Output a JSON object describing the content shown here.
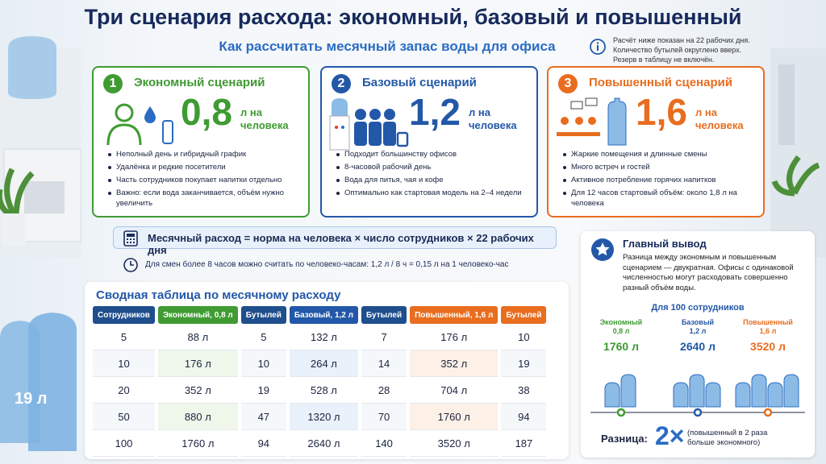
{
  "header": {
    "title": "Три сценария расхода: экономный, базовый и повышенный",
    "subtitle": "Как рассчитать месячный запас воды для офиса",
    "note": [
      "Расчёт ниже показан на 22 рабочих дня.",
      "Количество бутылей округлено вверх.",
      "Резерв в таблицу не включён."
    ]
  },
  "scenarios": [
    {
      "number": "1",
      "title": "Экономный сценарий",
      "value": "0,8",
      "unit": [
        "л на",
        "человека"
      ],
      "color": "#3f9b32",
      "bullets": [
        "Неполный день и гибридный график",
        "Удалёнка и редкие посетители",
        "Часть сотрудников покупает напитки отдельно",
        "Важно: если вода заканчивается, объём нужно увеличить"
      ]
    },
    {
      "number": "2",
      "title": "Базовый сценарий",
      "value": "1,2",
      "unit": [
        "л на",
        "человека"
      ],
      "color": "#2358a8",
      "bullets": [
        "Подходит большинству офисов",
        "8-часовой рабочий день",
        "Вода для питья, чая и кофе",
        "Оптимально как стартовая модель на 2–4 недели"
      ]
    },
    {
      "number": "3",
      "title": "Повышенный сценарий",
      "value": "1,6",
      "unit": [
        "л на",
        "человека"
      ],
      "color": "#e86d1f",
      "bullets": [
        "Жаркие помещения и длинные смены",
        "Много встреч и гостей",
        "Активное потребление горячих напитков",
        "Для 12 часов стартовый объём: около 1,8 л на человека"
      ]
    }
  ],
  "formula": "Месячный расход = норма на человека × число сотрудников × 22 рабочих дня",
  "hours_note": "Для смен более 8 часов можно считать по человеко-часам: 1,2 л / 8 ч = 0,15 л на 1 человеко-час",
  "table": {
    "title": "Сводная таблица по месячному расходу",
    "headers": [
      "Сотрудников",
      "Экономный, 0,8 л",
      "Бутылей",
      "Базовый, 1,2 л",
      "Бутылей",
      "Повышенный, 1,6 л",
      "Бутылей"
    ],
    "rows": [
      [
        "5",
        "88 л",
        "5",
        "132 л",
        "7",
        "176 л",
        "10"
      ],
      [
        "10",
        "176 л",
        "10",
        "264 л",
        "14",
        "352 л",
        "19"
      ],
      [
        "20",
        "352 л",
        "19",
        "528 л",
        "28",
        "704 л",
        "38"
      ],
      [
        "50",
        "880 л",
        "47",
        "1320 л",
        "70",
        "1760 л",
        "94"
      ],
      [
        "100",
        "1760 л",
        "94",
        "2640 л",
        "140",
        "3520 л",
        "187"
      ]
    ]
  },
  "conclusion": {
    "title": "Главный вывод",
    "text": [
      "Разница между экономным и повышенным",
      "сценарием — двукратная. Офисы с одинаковой",
      "численностью могут расходовать совершенно",
      "разный объём воды."
    ],
    "subtitle": "Для 100 сотрудников",
    "items": [
      {
        "label": "Экономный",
        "norm": "0,8 л",
        "total": "1760 л",
        "color": "#3f9b32"
      },
      {
        "label": "Базовый",
        "norm": "1,2 л",
        "total": "2640 л",
        "color": "#2358a8"
      },
      {
        "label": "Повышенный",
        "norm": "1,6 л",
        "total": "3520 л",
        "color": "#e86d1f"
      }
    ],
    "difference_label": "Разница:",
    "difference_value": "2×",
    "difference_note": [
      "(повышенный в 2 раза",
      "больше экономного)"
    ]
  },
  "bottle_badge": "19 л"
}
